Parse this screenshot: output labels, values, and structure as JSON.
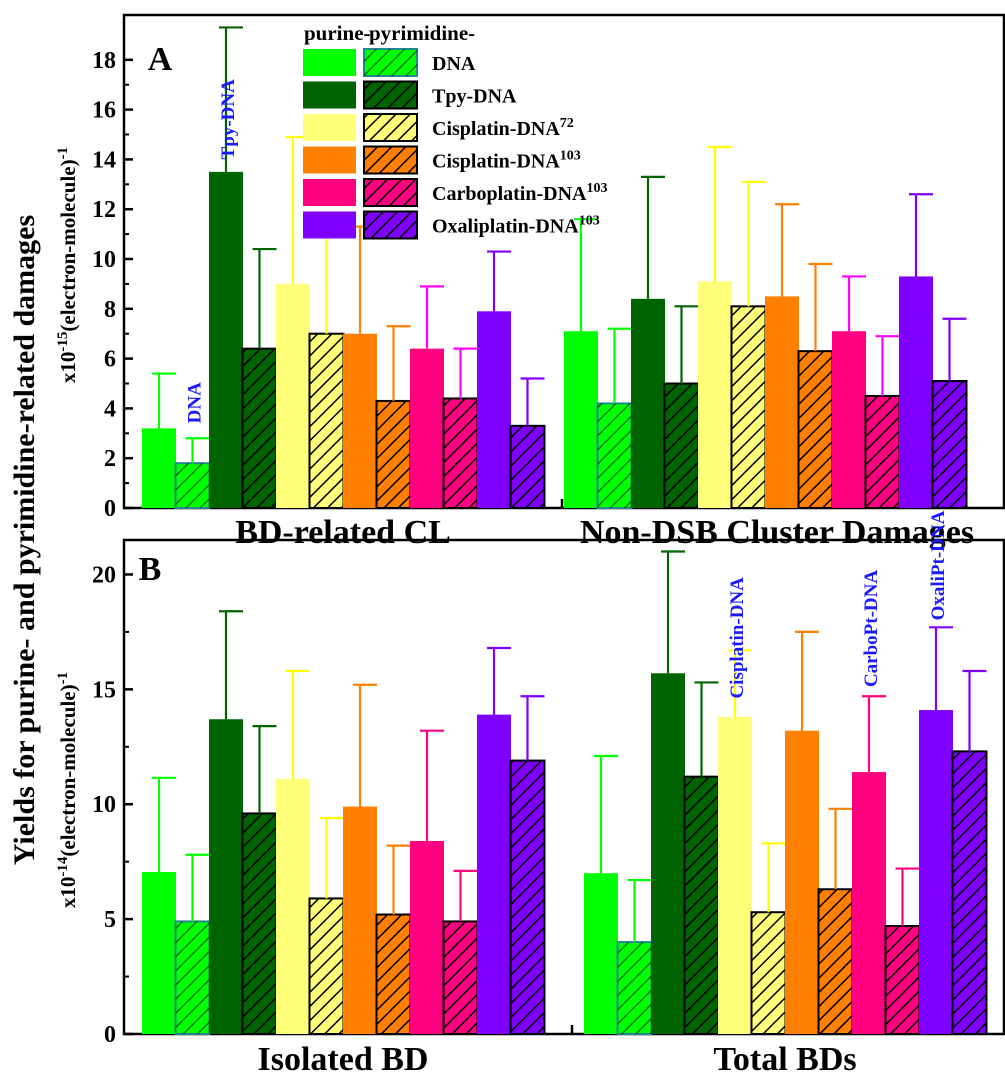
{
  "chart_data": {
    "type": "bar",
    "ylabel_main": "Yields for purine- and pyrimidine-related damages",
    "legend": {
      "header_purine": "purine-",
      "header_pyrimidine": "pyrimidine-",
      "entries": [
        {
          "label": "DNA",
          "sup": "",
          "color": "#00ff00"
        },
        {
          "label": "Tpy-DNA",
          "sup": "",
          "color": "#006400"
        },
        {
          "label": "Cisplatin-DNA",
          "sup": "72",
          "color": "#ffff7a"
        },
        {
          "label": "Cisplatin-DNA",
          "sup": "103",
          "color": "#ff8000"
        },
        {
          "label": "Carboplatin-DNA",
          "sup": "103",
          "color": "#ff0080"
        },
        {
          "label": "Oxaliplatin-DNA",
          "sup": "103",
          "color": "#8000ff"
        }
      ]
    },
    "panels": [
      {
        "letter": "A",
        "unit_prefix": "x10",
        "unit_exp": "-15",
        "unit_suffix": "(electron-molecule)",
        "unit_tail": "-1",
        "ylim": [
          0,
          19.8
        ],
        "yticks": [
          0,
          2,
          4,
          6,
          8,
          10,
          12,
          14,
          16,
          18
        ],
        "categories": [
          "BD-related CL",
          "Non-DSB Cluster Damages"
        ],
        "series": [
          {
            "name": "DNA",
            "kind": "purine",
            "values": [
              3.2,
              7.1
            ],
            "err": [
              2.2,
              4.5
            ],
            "color": "#00ff00",
            "err_color": "#00ff00"
          },
          {
            "name": "DNA",
            "kind": "pyrimidine",
            "values": [
              1.8,
              4.2
            ],
            "err": [
              1.0,
              3.0
            ],
            "color": "#00ff00",
            "err_color": "#00ff00"
          },
          {
            "name": "Tpy-DNA",
            "kind": "purine",
            "values": [
              13.5,
              8.4
            ],
            "err": [
              5.8,
              4.9
            ],
            "color": "#006400",
            "err_color": "#006400"
          },
          {
            "name": "Tpy-DNA",
            "kind": "pyrimidine",
            "values": [
              6.4,
              5.0
            ],
            "err": [
              4.0,
              3.1
            ],
            "color": "#006400",
            "err_color": "#006400"
          },
          {
            "name": "Cisplatin-DNA72",
            "kind": "purine",
            "values": [
              9.0,
              9.1
            ],
            "err": [
              5.9,
              5.4
            ],
            "color": "#ffff7a",
            "err_color": "#ffff00"
          },
          {
            "name": "Cisplatin-DNA72",
            "kind": "pyrimidine",
            "values": [
              7.0,
              8.1
            ],
            "err": [
              4.5,
              5.0
            ],
            "color": "#ffff7a",
            "err_color": "#ffff00"
          },
          {
            "name": "Cisplatin-DNA103",
            "kind": "purine",
            "values": [
              7.0,
              8.5
            ],
            "err": [
              4.3,
              3.7
            ],
            "color": "#ff8000",
            "err_color": "#ff8000"
          },
          {
            "name": "Cisplatin-DNA103",
            "kind": "pyrimidine",
            "values": [
              4.3,
              6.3
            ],
            "err": [
              3.0,
              3.5
            ],
            "color": "#ff8000",
            "err_color": "#ff8000"
          },
          {
            "name": "Carboplatin-DNA103",
            "kind": "purine",
            "values": [
              6.4,
              7.1
            ],
            "err": [
              2.5,
              2.2
            ],
            "color": "#ff0080",
            "err_color": "#ff00ff"
          },
          {
            "name": "Carboplatin-DNA103",
            "kind": "pyrimidine",
            "values": [
              4.4,
              4.5
            ],
            "err": [
              2.0,
              2.4
            ],
            "color": "#ff0080",
            "err_color": "#ff00ff"
          },
          {
            "name": "Oxaliplatin-DNA103",
            "kind": "purine",
            "values": [
              7.9,
              9.3
            ],
            "err": [
              2.4,
              3.3
            ],
            "color": "#8000ff",
            "err_color": "#8000ff"
          },
          {
            "name": "Oxaliplatin-DNA103",
            "kind": "pyrimidine",
            "values": [
              3.3,
              5.1
            ],
            "err": [
              1.9,
              2.5
            ],
            "color": "#8000ff",
            "err_color": "#8000ff"
          }
        ],
        "annotations": [
          {
            "text": "DNA",
            "category": 0,
            "bar": 1,
            "value": 3.4
          },
          {
            "text": "Tpy-DNA",
            "category": 0,
            "bar": 2,
            "value": 14.0
          }
        ]
      },
      {
        "letter": "B",
        "unit_prefix": "x10",
        "unit_exp": "-14",
        "unit_suffix": "(electron-molecule)",
        "unit_tail": "-1",
        "ylim": [
          0,
          21.5
        ],
        "yticks": [
          0,
          5,
          10,
          15,
          20
        ],
        "categories": [
          "Isolated BD",
          "Total BDs"
        ],
        "series": [
          {
            "name": "DNA",
            "kind": "purine",
            "values": [
              7.05,
              7.0
            ],
            "err": [
              4.1,
              5.1
            ],
            "color": "#00ff00",
            "err_color": "#00ff00"
          },
          {
            "name": "DNA",
            "kind": "pyrimidine",
            "values": [
              4.9,
              4.0
            ],
            "err": [
              2.9,
              2.7
            ],
            "color": "#00ff00",
            "err_color": "#00ff00"
          },
          {
            "name": "Tpy-DNA",
            "kind": "purine",
            "values": [
              13.7,
              15.7
            ],
            "err": [
              4.7,
              5.3
            ],
            "color": "#006400",
            "err_color": "#006400"
          },
          {
            "name": "Tpy-DNA",
            "kind": "pyrimidine",
            "values": [
              9.6,
              11.2
            ],
            "err": [
              3.8,
              4.1
            ],
            "color": "#006400",
            "err_color": "#006400"
          },
          {
            "name": "Cisplatin-DNA72",
            "kind": "purine",
            "values": [
              11.1,
              13.8
            ],
            "err": [
              4.7,
              2.9
            ],
            "color": "#ffff7a",
            "err_color": "#ffff00"
          },
          {
            "name": "Cisplatin-DNA72",
            "kind": "pyrimidine",
            "values": [
              5.9,
              5.3
            ],
            "err": [
              3.5,
              3.0
            ],
            "color": "#ffff7a",
            "err_color": "#ffff00"
          },
          {
            "name": "Cisplatin-DNA103",
            "kind": "purine",
            "values": [
              9.9,
              13.2
            ],
            "err": [
              5.3,
              4.3
            ],
            "color": "#ff8000",
            "err_color": "#ff8000"
          },
          {
            "name": "Cisplatin-DNA103",
            "kind": "pyrimidine",
            "values": [
              5.2,
              6.3
            ],
            "err": [
              3.0,
              3.5
            ],
            "color": "#ff8000",
            "err_color": "#ff8000"
          },
          {
            "name": "Carboplatin-DNA103",
            "kind": "purine",
            "values": [
              8.4,
              11.4
            ],
            "err": [
              4.8,
              3.3
            ],
            "color": "#ff0080",
            "err_color": "#ff0080"
          },
          {
            "name": "Carboplatin-DNA103",
            "kind": "pyrimidine",
            "values": [
              4.9,
              4.7
            ],
            "err": [
              2.2,
              2.5
            ],
            "color": "#ff0080",
            "err_color": "#ff0080"
          },
          {
            "name": "Oxaliplatin-DNA103",
            "kind": "purine",
            "values": [
              13.9,
              14.1
            ],
            "err": [
              2.9,
              3.6
            ],
            "color": "#8000ff",
            "err_color": "#8000ff"
          },
          {
            "name": "Oxaliplatin-DNA103",
            "kind": "pyrimidine",
            "values": [
              11.9,
              12.3
            ],
            "err": [
              2.8,
              3.5
            ],
            "color": "#8000ff",
            "err_color": "#8000ff"
          }
        ],
        "annotations": [
          {
            "text": "Cisplatin-DNA",
            "category": 1,
            "bar": 4,
            "value": 14.6
          },
          {
            "text": "CarboPt-DNA",
            "category": 1,
            "bar": 8,
            "value": 15.1
          },
          {
            "text": "OxaliPt-DNA",
            "category": 1,
            "bar": 10,
            "value": 18.0
          }
        ]
      }
    ]
  }
}
